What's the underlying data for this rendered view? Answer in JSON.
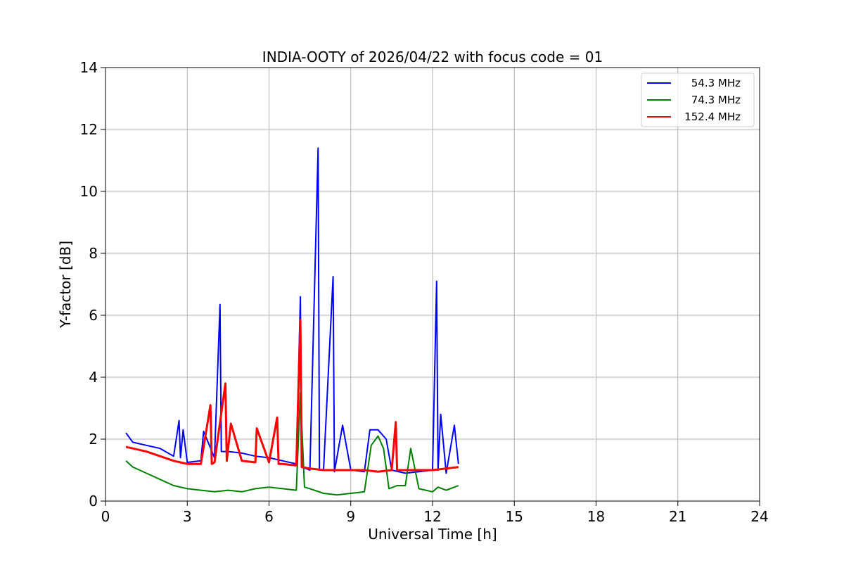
{
  "chart_data": {
    "type": "line",
    "title": "INDIA-OOTY of 2026/04/22 with focus code = 01",
    "xlabel": "Universal Time [h]",
    "ylabel": "Y-factor [dB]",
    "xlim": [
      0,
      24
    ],
    "ylim": [
      0,
      14
    ],
    "xticks": [
      0,
      3,
      6,
      9,
      12,
      15,
      18,
      21,
      24
    ],
    "yticks": [
      0,
      2,
      4,
      6,
      8,
      10,
      12,
      14
    ],
    "grid": true,
    "legend_position": "top-right",
    "series": [
      {
        "name": "54.3 MHz",
        "color": "#0000ff",
        "x": [
          0.75,
          1.0,
          1.5,
          2.0,
          2.5,
          2.7,
          2.75,
          2.85,
          3.0,
          3.5,
          3.6,
          4.0,
          4.2,
          4.25,
          4.5,
          5.0,
          5.5,
          6.0,
          6.5,
          7.0,
          7.15,
          7.2,
          7.5,
          7.8,
          7.85,
          8.0,
          8.35,
          8.4,
          8.7,
          9.0,
          9.5,
          9.7,
          10.0,
          10.3,
          10.5,
          11.0,
          11.5,
          12.0,
          12.15,
          12.2,
          12.3,
          12.5,
          12.8,
          12.95
        ],
        "y": [
          2.2,
          1.9,
          1.8,
          1.7,
          1.45,
          2.6,
          1.4,
          2.3,
          1.25,
          1.3,
          2.25,
          1.4,
          6.35,
          1.6,
          1.6,
          1.55,
          1.45,
          1.4,
          1.3,
          1.2,
          6.6,
          1.1,
          1.0,
          11.4,
          1.0,
          1.0,
          7.25,
          0.95,
          2.45,
          1.0,
          0.95,
          2.3,
          2.3,
          2.0,
          1.0,
          0.9,
          0.95,
          1.0,
          7.1,
          1.0,
          2.8,
          0.9,
          2.45,
          1.2
        ]
      },
      {
        "name": "74.3 MHz",
        "color": "#008000",
        "x": [
          0.75,
          1.0,
          1.5,
          2.0,
          2.5,
          3.0,
          3.5,
          4.0,
          4.5,
          5.0,
          5.5,
          6.0,
          6.5,
          7.0,
          7.15,
          7.3,
          7.5,
          8.0,
          8.5,
          9.0,
          9.5,
          9.75,
          10.0,
          10.2,
          10.4,
          10.7,
          11.0,
          11.2,
          11.5,
          12.0,
          12.2,
          12.5,
          12.95
        ],
        "y": [
          1.3,
          1.1,
          0.9,
          0.7,
          0.5,
          0.4,
          0.35,
          0.3,
          0.35,
          0.3,
          0.4,
          0.45,
          0.4,
          0.35,
          3.5,
          0.45,
          0.4,
          0.25,
          0.2,
          0.25,
          0.3,
          1.8,
          2.1,
          1.7,
          0.4,
          0.5,
          0.5,
          1.7,
          0.4,
          0.3,
          0.45,
          0.35,
          0.5
        ]
      },
      {
        "name": "152.4 MHz",
        "color": "#ff0000",
        "x": [
          0.75,
          1.0,
          1.5,
          2.0,
          2.5,
          3.0,
          3.5,
          3.85,
          3.9,
          4.0,
          4.4,
          4.45,
          4.6,
          5.0,
          5.5,
          5.55,
          6.0,
          6.3,
          6.35,
          6.5,
          7.0,
          7.15,
          7.2,
          7.5,
          8.0,
          8.5,
          9.0,
          9.5,
          10.0,
          10.5,
          10.65,
          10.7,
          11.0,
          11.5,
          12.0,
          12.5,
          12.95
        ],
        "y": [
          1.75,
          1.7,
          1.6,
          1.45,
          1.3,
          1.2,
          1.2,
          3.1,
          1.2,
          1.25,
          3.8,
          1.3,
          2.5,
          1.3,
          1.25,
          2.35,
          1.25,
          2.7,
          1.2,
          1.2,
          1.15,
          5.85,
          1.1,
          1.05,
          1.0,
          1.0,
          1.0,
          1.0,
          0.95,
          1.0,
          2.55,
          1.0,
          1.0,
          1.0,
          1.0,
          1.05,
          1.1
        ]
      }
    ]
  }
}
